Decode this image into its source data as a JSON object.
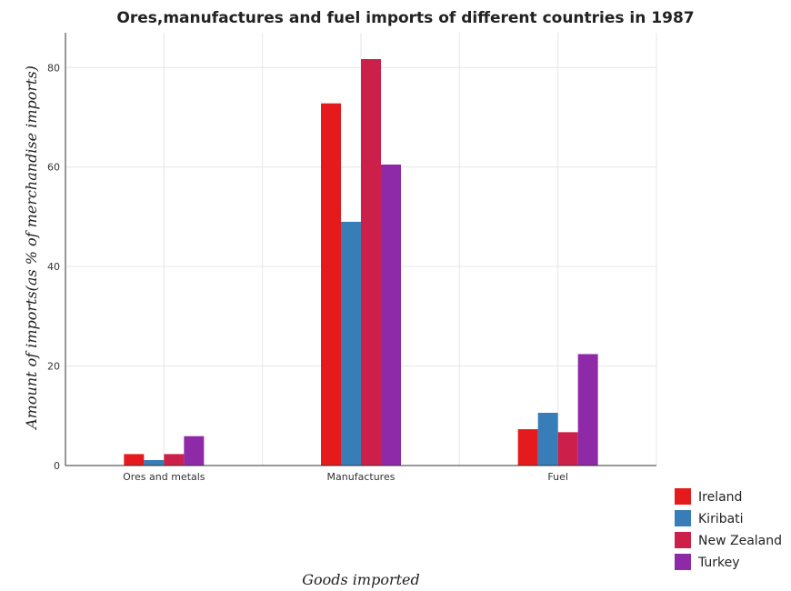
{
  "chart_data": {
    "type": "bar",
    "title": "Ores,manufactures and fuel imports of different countries in 1987",
    "xlabel": "Goods imported",
    "ylabel": "Amount of imports(as % of merchandise imports)",
    "categories": [
      "Ores and metals",
      "Manufactures",
      "Fuel"
    ],
    "ylim": [
      0,
      87
    ],
    "yticks": [
      0,
      20,
      40,
      60,
      80
    ],
    "grid": true,
    "legend_position": "bottom-right",
    "series": [
      {
        "name": "Ireland",
        "color": "#e41a1c",
        "values": [
          2.3,
          72.8,
          7.3
        ]
      },
      {
        "name": "Kiribati",
        "color": "#377eb8",
        "values": [
          1.1,
          49.0,
          10.6
        ]
      },
      {
        "name": "New Zealand",
        "color": "#cc1f4a",
        "values": [
          2.3,
          81.7,
          6.7
        ]
      },
      {
        "name": "Turkey",
        "color": "#8e2aa8",
        "values": [
          5.9,
          60.5,
          22.4
        ]
      }
    ]
  }
}
